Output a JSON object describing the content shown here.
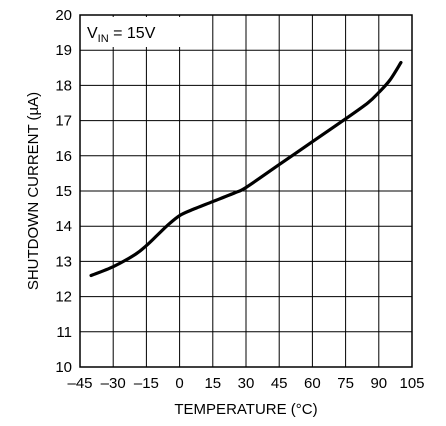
{
  "chart_data": {
    "type": "line",
    "xlabel": "TEMPERATURE (°C)",
    "ylabel": "SHUTDOWN CURRENT (µA)",
    "xlim": [
      -45,
      105
    ],
    "ylim": [
      10,
      20
    ],
    "xticks": [
      -45,
      -30,
      -15,
      0,
      15,
      30,
      45,
      60,
      75,
      90,
      105
    ],
    "xtick_labels": [
      "–45",
      "–30",
      "–15",
      "0",
      "15",
      "30",
      "45",
      "60",
      "75",
      "90",
      "105"
    ],
    "yticks": [
      10,
      11,
      12,
      13,
      14,
      15,
      16,
      17,
      18,
      19,
      20
    ],
    "ytick_labels": [
      "10",
      "11",
      "12",
      "13",
      "14",
      "15",
      "16",
      "17",
      "18",
      "19",
      "20"
    ],
    "grid": true,
    "annotation": {
      "main": "V",
      "sub": "IN",
      "rest": " = 15V"
    },
    "series": [
      {
        "x": [
          -40,
          -30,
          -20,
          -15,
          -10,
          -5,
          0,
          5,
          15,
          25,
          30,
          45,
          60,
          75,
          85,
          90,
          95,
          100
        ],
        "y": [
          12.6,
          12.85,
          13.2,
          13.45,
          13.75,
          14.05,
          14.3,
          14.45,
          14.7,
          14.95,
          15.1,
          15.75,
          16.4,
          17.05,
          17.5,
          17.8,
          18.15,
          18.65
        ]
      }
    ]
  }
}
